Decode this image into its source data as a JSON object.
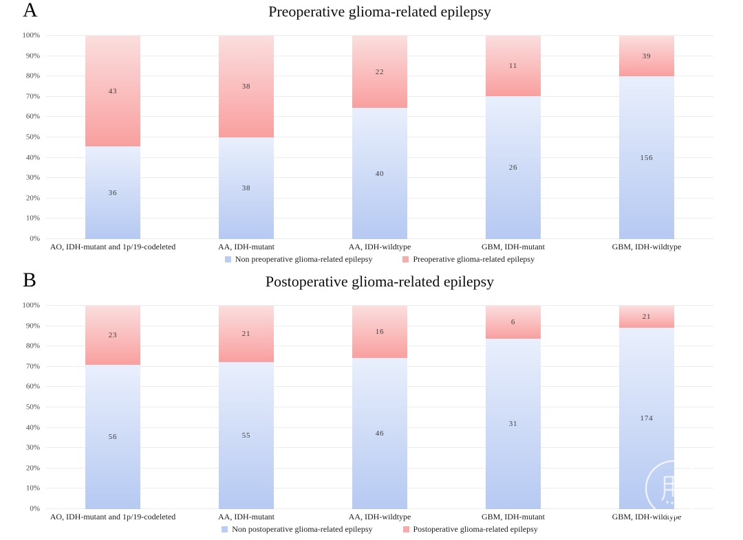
{
  "chart_data": [
    {
      "type": "bar",
      "stacked": true,
      "percent_scale": true,
      "panel_label": "A",
      "title": "Preoperative glioma-related epilepsy",
      "categories": [
        "AO, IDH-mutant and 1p/19-codeleted",
        "AA, IDH-mutant",
        "AA, IDH-wildtype",
        "GBM, IDH-mutant",
        "GBM, IDH-wildtype"
      ],
      "series": [
        {
          "name": "Non preoperative glioma-related epilepsy",
          "stack_position": "bottom",
          "values": [
            36,
            38,
            40,
            26,
            156
          ],
          "color_top": "#e9effc",
          "color_bottom": "#b6c9f2",
          "legend_swatch": "#b8ccf4"
        },
        {
          "name": "Preoperative glioma-related epilepsy",
          "stack_position": "top",
          "values": [
            43,
            38,
            22,
            11,
            39
          ],
          "color_top": "#fbdede",
          "color_bottom": "#f99f9f",
          "legend_swatch": "#f7abab"
        }
      ],
      "y_ticks": [
        "0%",
        "10%",
        "20%",
        "30%",
        "40%",
        "50%",
        "60%",
        "70%",
        "80%",
        "90%",
        "100%"
      ],
      "ylim": [
        0,
        100
      ],
      "xlabel": "",
      "ylabel": "",
      "grid": "horizontal",
      "legend_position": "bottom"
    },
    {
      "type": "bar",
      "stacked": true,
      "percent_scale": true,
      "panel_label": "B",
      "title": "Postoperative glioma-related epilepsy",
      "categories": [
        "AO, IDH-mutant and 1p/19-codeleted",
        "AA, IDH-mutant",
        "AA, IDH-wildtype",
        "GBM, IDH-mutant",
        "GBM, IDH-wildtype"
      ],
      "series": [
        {
          "name": "Non postoperative glioma-related epilepsy",
          "stack_position": "bottom",
          "values": [
            56,
            55,
            46,
            31,
            174
          ],
          "color_top": "#e9effc",
          "color_bottom": "#b6c9f2",
          "legend_swatch": "#b8ccf4"
        },
        {
          "name": "Postoperative glioma-related epilepsy",
          "stack_position": "top",
          "values": [
            23,
            21,
            16,
            6,
            21
          ],
          "color_top": "#fbdede",
          "color_bottom": "#f99f9f",
          "legend_swatch": "#f7abab"
        }
      ],
      "y_ticks": [
        "0%",
        "10%",
        "20%",
        "30%",
        "40%",
        "50%",
        "60%",
        "70%",
        "80%",
        "90%",
        "100%"
      ],
      "ylim": [
        0,
        100
      ],
      "xlabel": "",
      "ylabel": "",
      "grid": "horizontal",
      "legend_position": "bottom"
    }
  ],
  "styles": {
    "background": "#ffffff",
    "gridline_color": "#ececec",
    "tick_label_color": "#454545",
    "value_label_color": "#3a3a3a",
    "title_color": "#0d0d0d"
  },
  "watermark": {
    "description": "faint translucent circular logo over bottom-right bar",
    "ring_color": "rgba(255,255,255,0.75)"
  }
}
